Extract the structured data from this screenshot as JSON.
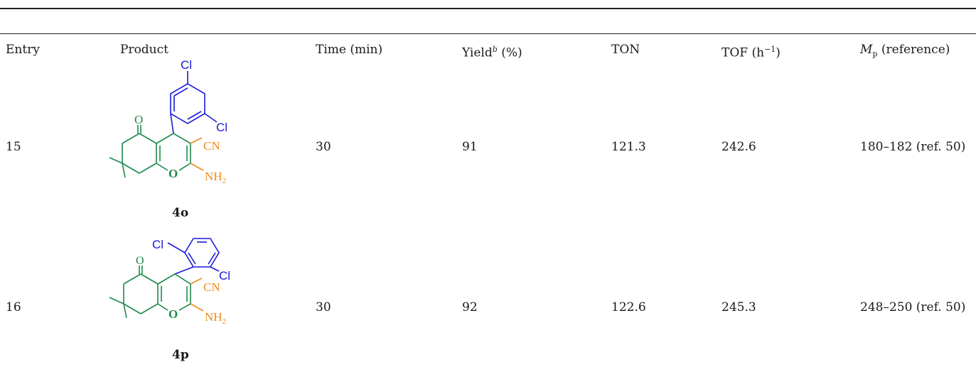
{
  "table": {
    "headers": {
      "entry": "Entry",
      "product": "Product",
      "time": "Time (min)",
      "yield_main": "Yield",
      "yield_sup": "b",
      "yield_unit": " (%)",
      "ton": "TON",
      "tof_main": "TOF (h",
      "tof_sup": "−1",
      "tof_end": ")",
      "mp_main": "M",
      "mp_sub": "p",
      "mp_rest": " (reference)"
    },
    "rows": [
      {
        "entry": "15",
        "compound": "4o",
        "time": "30",
        "yield": "91",
        "ton": "121.3",
        "tof": "242.6",
        "mp": "180–182 (ref. 50)"
      },
      {
        "entry": "16",
        "compound": "4p",
        "time": "30",
        "yield": "92",
        "ton": "122.6",
        "tof": "245.3",
        "mp": "248–250 (ref. 50)"
      }
    ]
  },
  "structure_labels": {
    "cl": "Cl",
    "o": "O",
    "cn": "CN",
    "nh2_main": "NH",
    "nh2_sub": "2"
  },
  "colors": {
    "aryl": "#1a1ad6",
    "pyran": "#1c8a4a",
    "nitrile_amino": "#f08a1c",
    "rule": "#222222"
  }
}
